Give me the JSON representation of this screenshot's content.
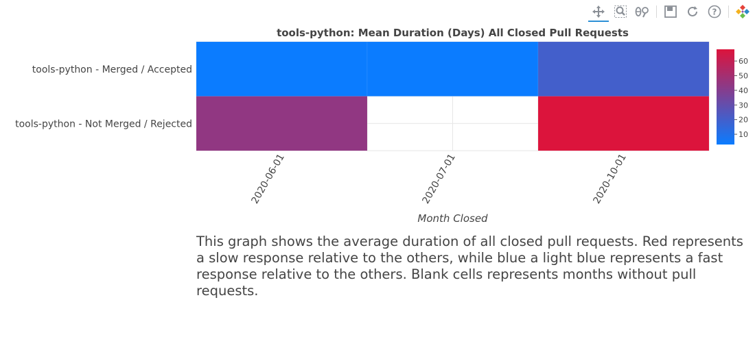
{
  "toolbar": {
    "tools": [
      {
        "name": "pan-tool-icon",
        "label": "Pan",
        "active": true
      },
      {
        "name": "box-zoom-tool-icon",
        "label": "Box Zoom",
        "active": false
      },
      {
        "name": "wheel-zoom-tool-icon",
        "label": "Wheel Zoom",
        "active": false
      },
      {
        "name": "save-tool-icon",
        "label": "Save",
        "active": false
      },
      {
        "name": "reset-tool-icon",
        "label": "Reset",
        "active": false
      },
      {
        "name": "help-tool-icon",
        "label": "Help",
        "active": false
      },
      {
        "name": "bokeh-logo-icon",
        "label": "Bokeh",
        "active": false
      }
    ]
  },
  "chart_data": {
    "type": "heatmap",
    "title": "tools-python: Mean Duration (Days) All Closed Pull Requests",
    "xlabel": "Month Closed",
    "ylabel": "",
    "x_categories": [
      "2020-06-01",
      "2020-07-01",
      "2020-10-01"
    ],
    "y_categories": [
      "tools-python - Merged / Accepted",
      "tools-python - Not Merged / Rejected"
    ],
    "values": [
      [
        3,
        3,
        20
      ],
      [
        44,
        null,
        68
      ]
    ],
    "color_range": [
      3,
      68
    ],
    "colorbar_ticks": [
      10,
      20,
      30,
      40,
      50,
      60
    ],
    "colors": {
      "low": "#0b7cff",
      "mid": "#8b3a88",
      "high": "#dc143c",
      "grid": "#e6e6e6"
    },
    "grid": true
  },
  "description": "This graph shows the average duration of all closed pull requests. Red represents a slow response relative to the others, while blue a light blue represents a fast response relative to the others. Blank cells represents months without pull requests."
}
